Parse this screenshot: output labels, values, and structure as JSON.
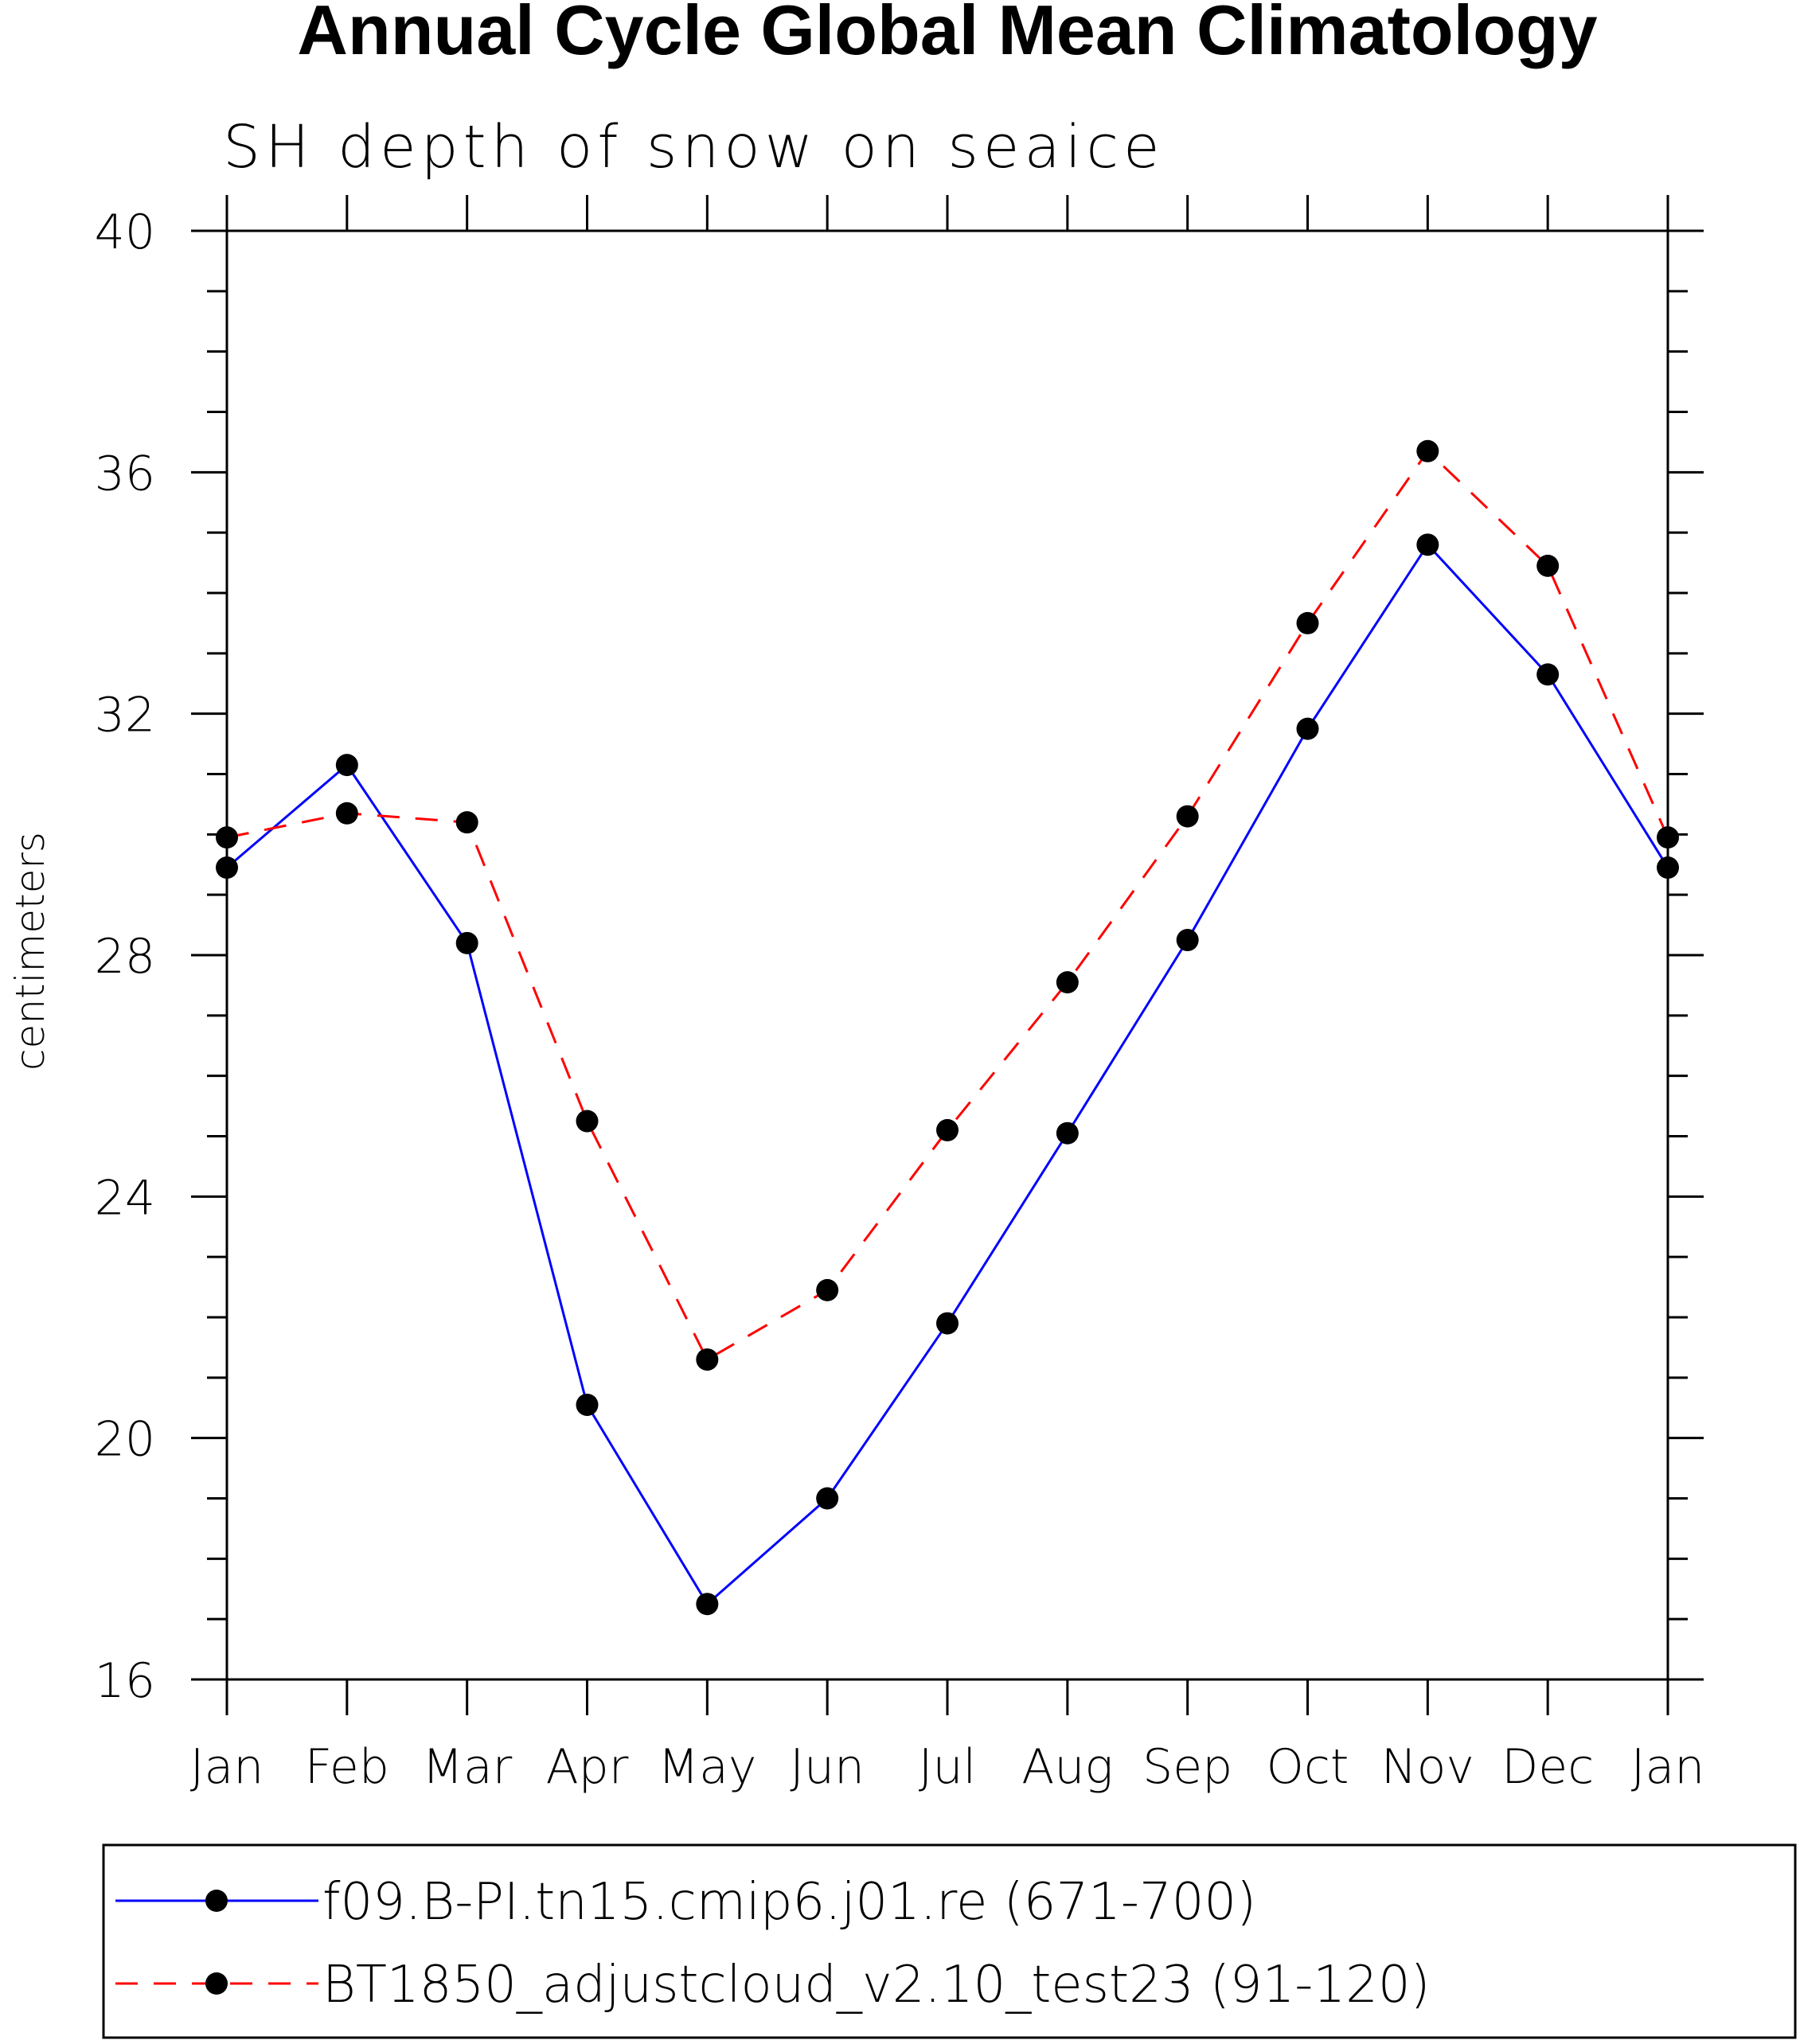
{
  "chart_data": {
    "type": "line",
    "title": "Annual Cycle Global Mean Climatology",
    "subtitle": "SH depth of snow on seaice",
    "xlabel": "",
    "ylabel": "centimeters",
    "categories": [
      "Jan",
      "Feb",
      "Mar",
      "Apr",
      "May",
      "Jun",
      "Jul",
      "Aug",
      "Sep",
      "Oct",
      "Nov",
      "Dec",
      "Jan"
    ],
    "ylim": [
      16,
      40
    ],
    "yticks": [
      "16",
      "20",
      "24",
      "28",
      "32",
      "36",
      "40"
    ],
    "legend_position": "bottom",
    "series": [
      {
        "name": "f09.B-PI.tn15.cmip6.j01.re (671-700)",
        "color": "#0000ff",
        "dash": "solid",
        "values": [
          29.45,
          31.15,
          28.2,
          20.55,
          17.25,
          19.0,
          21.9,
          25.05,
          28.25,
          31.75,
          34.8,
          32.65,
          29.45
        ]
      },
      {
        "name": "BT1850_adjustcloud_v2.10_test23 (91-120)",
        "color": "#ff0000",
        "dash": "dashed",
        "values": [
          29.95,
          30.35,
          30.2,
          25.25,
          21.3,
          22.45,
          25.1,
          27.55,
          30.3,
          33.5,
          36.35,
          34.45,
          29.95
        ]
      }
    ]
  }
}
